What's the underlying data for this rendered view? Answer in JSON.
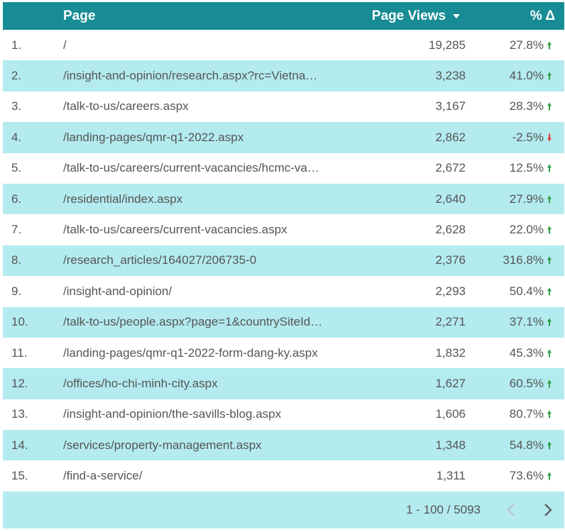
{
  "header": {
    "columns": [
      "Page",
      "Page Views",
      "% Δ"
    ]
  },
  "table": {
    "rows": [
      [
        "1.",
        "/",
        "19,285",
        "27.8%"
      ],
      [
        "2.",
        "/insight-and-opinion/research.aspx?rc=Vietna…",
        "3,238",
        "41.0%"
      ],
      [
        "3.",
        "/talk-to-us/careers.aspx",
        "3,167",
        "28.3%"
      ],
      [
        "4.",
        "/landing-pages/qmr-q1-2022.aspx",
        "2,862",
        "-2.5%"
      ],
      [
        "5.",
        "/talk-to-us/careers/current-vacancies/hcmc-va…",
        "2,672",
        "12.5%"
      ],
      [
        "6.",
        "/residential/index.aspx",
        "2,640",
        "27.9%"
      ],
      [
        "7.",
        "/talk-to-us/careers/current-vacancies.aspx",
        "2,628",
        "22.0%"
      ],
      [
        "8.",
        "/research_articles/164027/206735-0",
        "2,376",
        "316.8%"
      ],
      [
        "9.",
        "/insight-and-opinion/",
        "2,293",
        "50.4%"
      ],
      [
        "10.",
        "/talk-to-us/people.aspx?page=1&countrySiteId…",
        "2,271",
        "37.1%"
      ],
      [
        "11.",
        "/landing-pages/qmr-q1-2022-form-dang-ky.aspx",
        "1,832",
        "45.3%"
      ],
      [
        "12.",
        "/offices/ho-chi-minh-city.aspx",
        "1,627",
        "60.5%"
      ],
      [
        "13.",
        "/insight-and-opinion/the-savills-blog.aspx",
        "1,606",
        "80.7%"
      ],
      [
        "14.",
        "/services/property-management.aspx",
        "1,348",
        "54.8%"
      ],
      [
        "15.",
        "/find-a-service/",
        "1,311",
        "73.6%"
      ]
    ]
  },
  "footer": {
    "range": "1 - 100 / 5093"
  }
}
